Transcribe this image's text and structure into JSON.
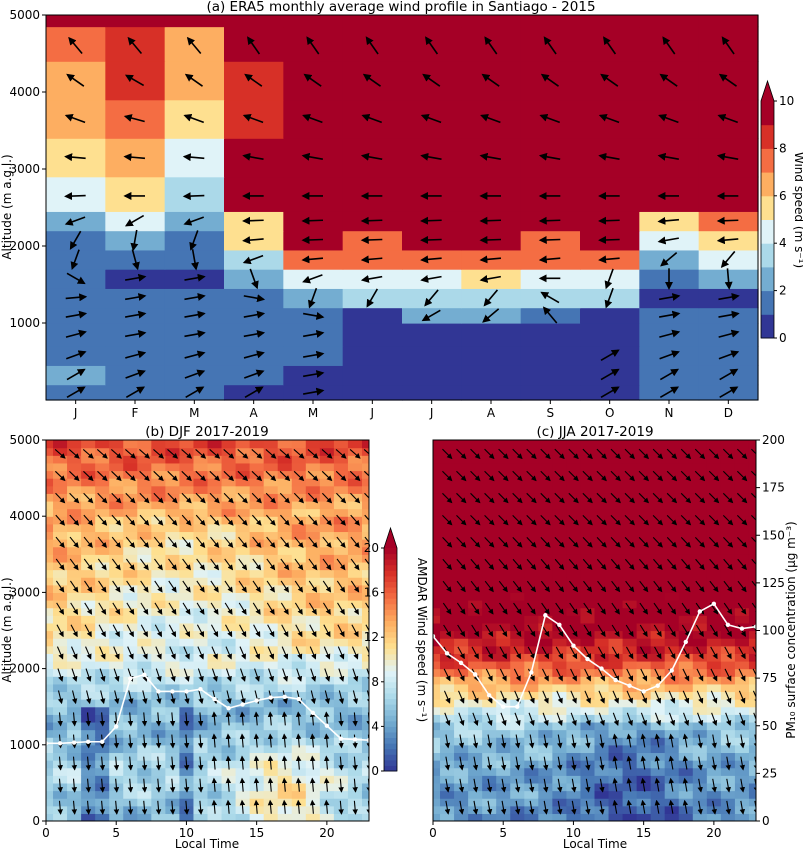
{
  "chart_data": [
    {
      "type": "heatmap",
      "title": "(a) ERA5 monthly average wind profile in Santiago - 2015",
      "ylabel": "Altitude (m a.g.l.)",
      "x_categories": [
        "J",
        "F",
        "M",
        "A",
        "M",
        "J",
        "J",
        "A",
        "S",
        "O",
        "N",
        "D"
      ],
      "yticks": [
        "1000",
        "2000",
        "3000",
        "4000",
        "5000"
      ],
      "ylim": [
        0,
        5000
      ],
      "colorbar": {
        "label": "Wind speed (m s⁻¹)",
        "ticks": [
          "0",
          "2",
          "4",
          "6",
          "8",
          "10"
        ],
        "range": [
          0,
          10
        ]
      },
      "level_bounds_m": [
        0,
        200,
        450,
        700,
        1000,
        1200,
        1450,
        1700,
        1950,
        2200,
        2450,
        2900,
        3400,
        3900,
        4400,
        4850,
        5000
      ],
      "speed_levels_ms": [
        [
          1.5,
          1.5,
          1.5,
          0.5,
          0.5,
          0.5,
          0.5,
          0.5,
          0.5,
          0.5,
          1.5,
          1.5
        ],
        [
          2.5,
          1.5,
          1.5,
          1.5,
          0.5,
          0.5,
          0.5,
          0.5,
          0.5,
          0.5,
          1.5,
          1.5
        ],
        [
          1.5,
          1.5,
          1.5,
          1.5,
          1.5,
          0.5,
          0.5,
          0.5,
          0.5,
          0.5,
          1.5,
          1.5
        ],
        [
          1.5,
          1.5,
          1.5,
          1.5,
          1.5,
          0.5,
          0.5,
          0.5,
          0.5,
          0.5,
          1.5,
          1.5
        ],
        [
          1.5,
          1.5,
          1.5,
          1.5,
          1.5,
          0.5,
          2.5,
          2.5,
          1.5,
          0.5,
          1.5,
          1.5
        ],
        [
          1.5,
          1.5,
          1.5,
          1.5,
          2.5,
          3.5,
          3.5,
          3.5,
          3.5,
          3.5,
          0.5,
          0.5
        ],
        [
          1.5,
          0.5,
          0.5,
          2.5,
          4.5,
          4.5,
          4.5,
          5.5,
          4.5,
          4.5,
          1.5,
          2.5
        ],
        [
          1.5,
          1.5,
          1.5,
          3.5,
          7.5,
          7.5,
          7.5,
          7.5,
          7.5,
          7.5,
          2.5,
          4.5
        ],
        [
          1.5,
          2.5,
          1.5,
          5.5,
          9.5,
          7.5,
          9.5,
          9.5,
          7.5,
          9.5,
          4.5,
          5.5
        ],
        [
          2.5,
          4.5,
          2.5,
          5.5,
          9.5,
          9.5,
          9.5,
          9.5,
          9.5,
          9.5,
          5.5,
          7.5
        ],
        [
          4.5,
          5.5,
          3.5,
          9.5,
          9.5,
          9.5,
          9.5,
          9.5,
          9.5,
          9.5,
          9.5,
          9.5
        ],
        [
          5.5,
          6.5,
          4.5,
          9.5,
          9.5,
          9.5,
          9.5,
          9.5,
          9.5,
          9.5,
          9.5,
          9.5
        ],
        [
          6.5,
          7.5,
          5.5,
          8.5,
          9.5,
          9.5,
          9.5,
          9.5,
          9.5,
          9.5,
          9.5,
          9.5
        ],
        [
          6.5,
          8.5,
          6.5,
          8.5,
          9.5,
          9.5,
          9.5,
          9.5,
          9.5,
          9.5,
          9.5,
          9.5
        ],
        [
          7.5,
          8.5,
          6.5,
          9.5,
          9.5,
          9.5,
          9.5,
          9.5,
          9.5,
          9.5,
          9.5,
          9.5
        ],
        [
          9.5,
          9.5,
          9.5,
          9.5,
          9.5,
          9.5,
          9.5,
          9.5,
          9.5,
          9.5,
          9.5,
          9.5
        ]
      ],
      "arrow_levels_m": [
        100,
        330,
        580,
        850,
        1100,
        1330,
        1580,
        1830,
        2080,
        2330,
        2650,
        3150,
        3650,
        4150,
        4600
      ],
      "arrow_direction_deg": [
        [
          60,
          60,
          60,
          60,
          80,
          null,
          null,
          null,
          null,
          60,
          60,
          60
        ],
        [
          60,
          70,
          70,
          70,
          80,
          null,
          null,
          null,
          null,
          60,
          60,
          60
        ],
        [
          70,
          75,
          75,
          75,
          80,
          null,
          null,
          null,
          null,
          60,
          70,
          70
        ],
        [
          75,
          80,
          80,
          80,
          80,
          null,
          null,
          null,
          null,
          null,
          75,
          75
        ],
        [
          80,
          80,
          80,
          80,
          100,
          null,
          240,
          230,
          320,
          null,
          80,
          80
        ],
        [
          85,
          80,
          80,
          100,
          200,
          210,
          220,
          220,
          300,
          200,
          80,
          80
        ],
        [
          120,
          80,
          80,
          160,
          250,
          260,
          260,
          260,
          270,
          200,
          180,
          175
        ],
        [
          200,
          165,
          170,
          250,
          265,
          265,
          265,
          265,
          265,
          265,
          230,
          220
        ],
        [
          210,
          190,
          200,
          265,
          268,
          268,
          268,
          268,
          268,
          268,
          260,
          265
        ],
        [
          250,
          240,
          250,
          268,
          268,
          268,
          268,
          268,
          268,
          268,
          265,
          268
        ],
        [
          268,
          270,
          268,
          270,
          270,
          270,
          270,
          270,
          270,
          270,
          270,
          270
        ],
        [
          275,
          275,
          275,
          280,
          280,
          280,
          280,
          280,
          280,
          280,
          280,
          280
        ],
        [
          290,
          285,
          290,
          290,
          290,
          290,
          290,
          290,
          290,
          290,
          290,
          290
        ],
        [
          305,
          300,
          305,
          305,
          305,
          305,
          305,
          305,
          305,
          305,
          305,
          305
        ],
        [
          320,
          320,
          320,
          325,
          325,
          325,
          325,
          325,
          325,
          325,
          325,
          325
        ]
      ]
    },
    {
      "type": "heatmap",
      "title": "(b) DJF 2017-2019",
      "ylabel": "Altitude (m a.g.l.)",
      "xlabel": "Local Time",
      "xticks": [
        "0",
        "5",
        "10",
        "15",
        "20"
      ],
      "xlim": [
        0,
        23
      ],
      "yticks": [
        "0",
        "1000",
        "2000",
        "3000",
        "4000",
        "5000"
      ],
      "ylim": [
        0,
        5000
      ],
      "colorbar": {
        "label": "AMDAR Wind speed (m s⁻¹)",
        "ticks": [
          "0",
          "4",
          "8",
          "12",
          "16",
          "20"
        ],
        "range": [
          0,
          20
        ]
      },
      "speed_profile_by_altitude": {
        "altitude_m": [
          0,
          300,
          600,
          900,
          1200,
          1500,
          1800,
          2100,
          2500,
          3000,
          3500,
          4000,
          4500,
          5000
        ],
        "speed_ms": [
          5,
          6,
          7,
          6,
          5,
          5,
          7,
          9,
          10,
          11,
          12,
          13,
          15,
          17
        ]
      },
      "pm10_line": {
        "hours": [
          0,
          1,
          2,
          3,
          4,
          5,
          6,
          7,
          8,
          9,
          10,
          11,
          12,
          13,
          14,
          15,
          16,
          17,
          18,
          19,
          20,
          21,
          22,
          23
        ],
        "altitude_m": [
          1020,
          1020,
          1030,
          1040,
          1040,
          1240,
          1870,
          1920,
          1700,
          1700,
          1700,
          1730,
          1600,
          1480,
          1530,
          1580,
          1620,
          1630,
          1600,
          1420,
          1250,
          1080,
          1070,
          1060
        ]
      }
    },
    {
      "type": "heatmap",
      "title": "(c) JJA 2017-2019",
      "xlabel": "Local Time",
      "xticks": [
        "0",
        "5",
        "10",
        "15",
        "20"
      ],
      "xlim": [
        0,
        23
      ],
      "y2label": "PM₁₀ surface concentration (μg m⁻³)",
      "y2ticks": [
        "0",
        "25",
        "50",
        "75",
        "100",
        "125",
        "150",
        "175",
        "200"
      ],
      "y2lim": [
        0,
        200
      ],
      "speed_profile_by_altitude": {
        "altitude_m": [
          0,
          300,
          600,
          900,
          1200,
          1500,
          1800,
          2100,
          2500,
          3000,
          5000
        ],
        "speed_ms": [
          3,
          4,
          4,
          5,
          6,
          9,
          13,
          17,
          20,
          22,
          25
        ]
      },
      "pm10_line": {
        "hours": [
          0,
          1,
          2,
          3,
          4,
          5,
          6,
          7,
          8,
          9,
          10,
          11,
          12,
          13,
          14,
          15,
          16,
          17,
          18,
          19,
          20,
          21,
          22,
          23
        ],
        "pm10_ugm3": [
          97,
          88,
          83,
          77,
          66,
          60,
          60,
          78,
          108,
          103,
          92,
          85,
          80,
          74,
          71,
          68,
          71,
          79,
          94,
          110,
          114,
          103,
          101,
          102
        ]
      }
    }
  ]
}
